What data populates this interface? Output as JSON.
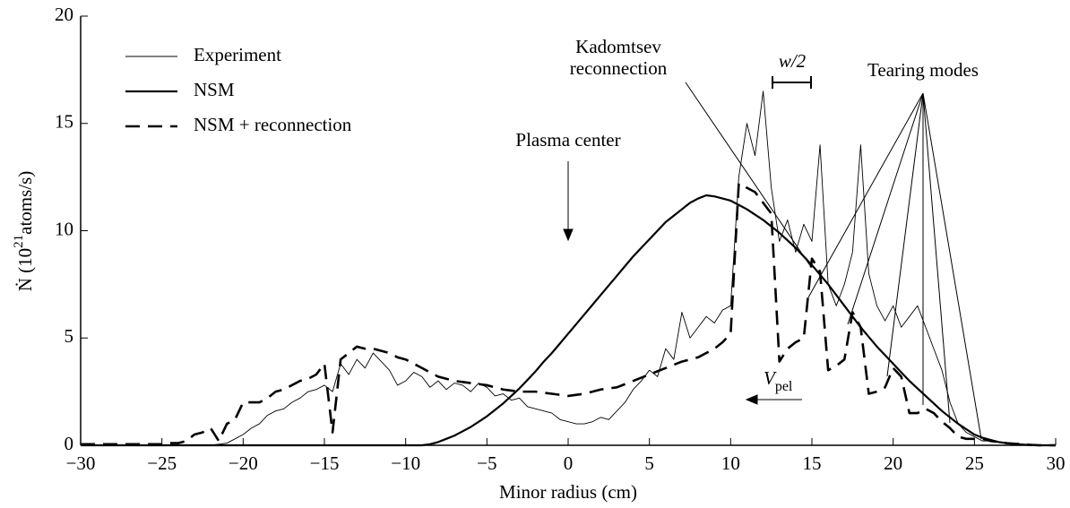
{
  "chart_data": {
    "type": "line",
    "x_label": "Minor radius  (cm)",
    "y_label": [
      "Ṅ  (10",
      "21",
      "atoms/s)"
    ],
    "x": [
      -30,
      -29.5,
      -29,
      -28.5,
      -28,
      -27.5,
      -27,
      -26.5,
      -26,
      -25.5,
      -25,
      -24.5,
      -24,
      -23.5,
      -23,
      -22.5,
      -22,
      -21.5,
      -21,
      -20.5,
      -20,
      -19.5,
      -19,
      -18.5,
      -18,
      -17.5,
      -17,
      -16.5,
      -16,
      -15.5,
      -15,
      -14.5,
      -14,
      -13.5,
      -13,
      -12.5,
      -12,
      -11.5,
      -11,
      -10.5,
      -10,
      -9.5,
      -9,
      -8.5,
      -8,
      -7.5,
      -7,
      -6.5,
      -6,
      -5.5,
      -5,
      -4.5,
      -4,
      -3.5,
      -3,
      -2.5,
      -2,
      -1.5,
      -1,
      -0.5,
      0,
      0.5,
      1,
      1.5,
      2,
      2.5,
      3,
      3.5,
      4,
      4.5,
      5,
      5.5,
      6,
      6.5,
      7,
      7.5,
      8,
      8.5,
      9,
      9.5,
      10,
      10.5,
      11,
      11.5,
      12,
      12.5,
      13,
      13.5,
      14,
      14.5,
      15,
      15.5,
      16,
      16.5,
      17,
      17.5,
      18,
      18.5,
      19,
      19.5,
      20,
      20.5,
      21,
      21.5,
      22,
      22.5,
      23,
      23.5,
      24,
      24.5,
      25,
      25.5,
      26,
      26.5,
      27,
      27.5,
      28,
      28.5,
      29,
      29.5,
      30
    ],
    "series": [
      {
        "name": "Experiment",
        "color": "#000000",
        "style": "thin",
        "values": [
          0,
          0,
          0,
          0,
          0,
          0,
          0,
          0,
          0,
          0,
          0,
          0,
          0,
          0,
          0,
          0,
          0,
          0.05,
          0.1,
          0.3,
          0.5,
          0.8,
          1.0,
          1.4,
          1.6,
          1.7,
          2.0,
          2.2,
          2.5,
          2.6,
          2.8,
          2.5,
          3.8,
          3.3,
          4.0,
          3.6,
          4.3,
          3.9,
          3.5,
          2.8,
          3.0,
          3.4,
          3.2,
          2.7,
          3.0,
          2.6,
          2.9,
          2.8,
          2.5,
          2.9,
          2.7,
          2.3,
          2.4,
          2.1,
          2.2,
          1.8,
          1.7,
          1.6,
          1.5,
          1.2,
          1.1,
          1.0,
          1.0,
          1.1,
          1.3,
          1.2,
          1.6,
          2.0,
          2.6,
          3.0,
          3.5,
          3.2,
          4.5,
          4.0,
          6.2,
          5.0,
          5.5,
          6.0,
          5.7,
          6.3,
          6.5,
          12.5,
          15.0,
          13.5,
          16.5,
          12.0,
          9.5,
          10.5,
          9.0,
          10.3,
          9.5,
          14.0,
          7.5,
          6.5,
          7.5,
          9.0,
          14.0,
          8.0,
          6.5,
          5.8,
          6.5,
          5.5,
          6.0,
          6.5,
          5.5,
          4.5,
          3.5,
          2.0,
          1.0,
          0.6,
          0.4,
          0.2,
          0.2,
          0.15,
          0.1,
          0,
          0,
          0,
          0,
          0,
          0
        ]
      },
      {
        "name": "NSM",
        "color": "#000000",
        "style": "thick",
        "values": [
          0,
          0,
          0,
          0,
          0,
          0,
          0,
          0,
          0,
          0,
          0,
          0,
          0,
          0,
          0,
          0,
          0,
          0,
          0,
          0,
          0,
          0,
          0,
          0,
          0,
          0,
          0,
          0,
          0,
          0,
          0,
          0,
          0,
          0,
          0,
          0,
          0,
          0,
          0,
          0,
          0,
          0,
          0,
          0.05,
          0.15,
          0.3,
          0.45,
          0.65,
          0.85,
          1.1,
          1.35,
          1.65,
          1.95,
          2.3,
          2.65,
          3.05,
          3.45,
          3.9,
          4.3,
          4.75,
          5.2,
          5.65,
          6.1,
          6.55,
          7.0,
          7.45,
          7.9,
          8.35,
          8.8,
          9.2,
          9.6,
          10.0,
          10.4,
          10.7,
          11.0,
          11.3,
          11.5,
          11.65,
          11.6,
          11.5,
          11.4,
          11.2,
          11.0,
          10.75,
          10.5,
          10.2,
          9.9,
          9.55,
          9.2,
          8.8,
          8.4,
          7.95,
          7.5,
          7.0,
          6.5,
          6.0,
          5.5,
          5.05,
          4.6,
          4.2,
          3.8,
          3.4,
          3.0,
          2.65,
          2.3,
          1.95,
          1.6,
          1.3,
          1.0,
          0.75,
          0.5,
          0.35,
          0.25,
          0.15,
          0.1,
          0.06,
          0.03,
          0.01,
          0,
          0,
          0
        ]
      },
      {
        "name": "NSM + reconnection",
        "color": "#000000",
        "style": "dashed",
        "values": [
          0.05,
          0.05,
          0.05,
          0.05,
          0.05,
          0.05,
          0.05,
          0.05,
          0.05,
          0.05,
          0.05,
          0.1,
          0.1,
          0.2,
          0.5,
          0.6,
          0.8,
          0.2,
          1.0,
          1.2,
          2.0,
          2.0,
          2.0,
          2.2,
          2.5,
          2.6,
          2.8,
          3.0,
          3.1,
          3.3,
          3.8,
          0.6,
          4.0,
          4.3,
          4.6,
          4.5,
          4.5,
          4.4,
          4.3,
          4.1,
          4.0,
          3.8,
          3.6,
          3.4,
          3.2,
          3.1,
          3.0,
          2.95,
          2.9,
          2.85,
          2.8,
          2.7,
          2.6,
          2.55,
          2.5,
          2.5,
          2.5,
          2.45,
          2.4,
          2.35,
          2.3,
          2.35,
          2.4,
          2.5,
          2.6,
          2.65,
          2.7,
          2.85,
          3.0,
          3.15,
          3.3,
          3.45,
          3.6,
          3.75,
          3.9,
          4.0,
          4.1,
          4.3,
          4.5,
          4.8,
          5.2,
          12.2,
          12.0,
          11.8,
          11.3,
          10.8,
          3.9,
          4.5,
          4.8,
          5.0,
          8.7,
          8.1,
          3.5,
          3.7,
          4.0,
          6.2,
          5.5,
          2.4,
          2.5,
          2.7,
          3.6,
          3.2,
          1.5,
          1.5,
          1.7,
          1.5,
          1.1,
          0.8,
          0.4,
          0.3,
          0.3,
          0.3,
          0.2,
          0.15,
          0.1,
          0.07,
          0.05,
          0.02,
          0,
          0,
          0
        ]
      }
    ],
    "xlim": [
      -30,
      30
    ],
    "ylim": [
      0,
      20
    ],
    "xticks": [
      {
        "value": -30,
        "label": "−30"
      },
      {
        "value": -25,
        "label": "−25"
      },
      {
        "value": -20,
        "label": "−20"
      },
      {
        "value": -15,
        "label": "−15"
      },
      {
        "value": -10,
        "label": "−10"
      },
      {
        "value": -5,
        "label": "−5"
      },
      0,
      5,
      10,
      15,
      20,
      25,
      30
    ],
    "yticks": [
      0,
      5,
      10,
      15,
      20
    ],
    "legend": "top-left",
    "annotations": {
      "plasma_center": "Plasma center",
      "kadomtsev": [
        "Kadomtsev",
        "reconnection"
      ],
      "half_width": "w/2",
      "tearing": "Tearing modes",
      "velocity": [
        "V",
        "pel"
      ]
    }
  }
}
